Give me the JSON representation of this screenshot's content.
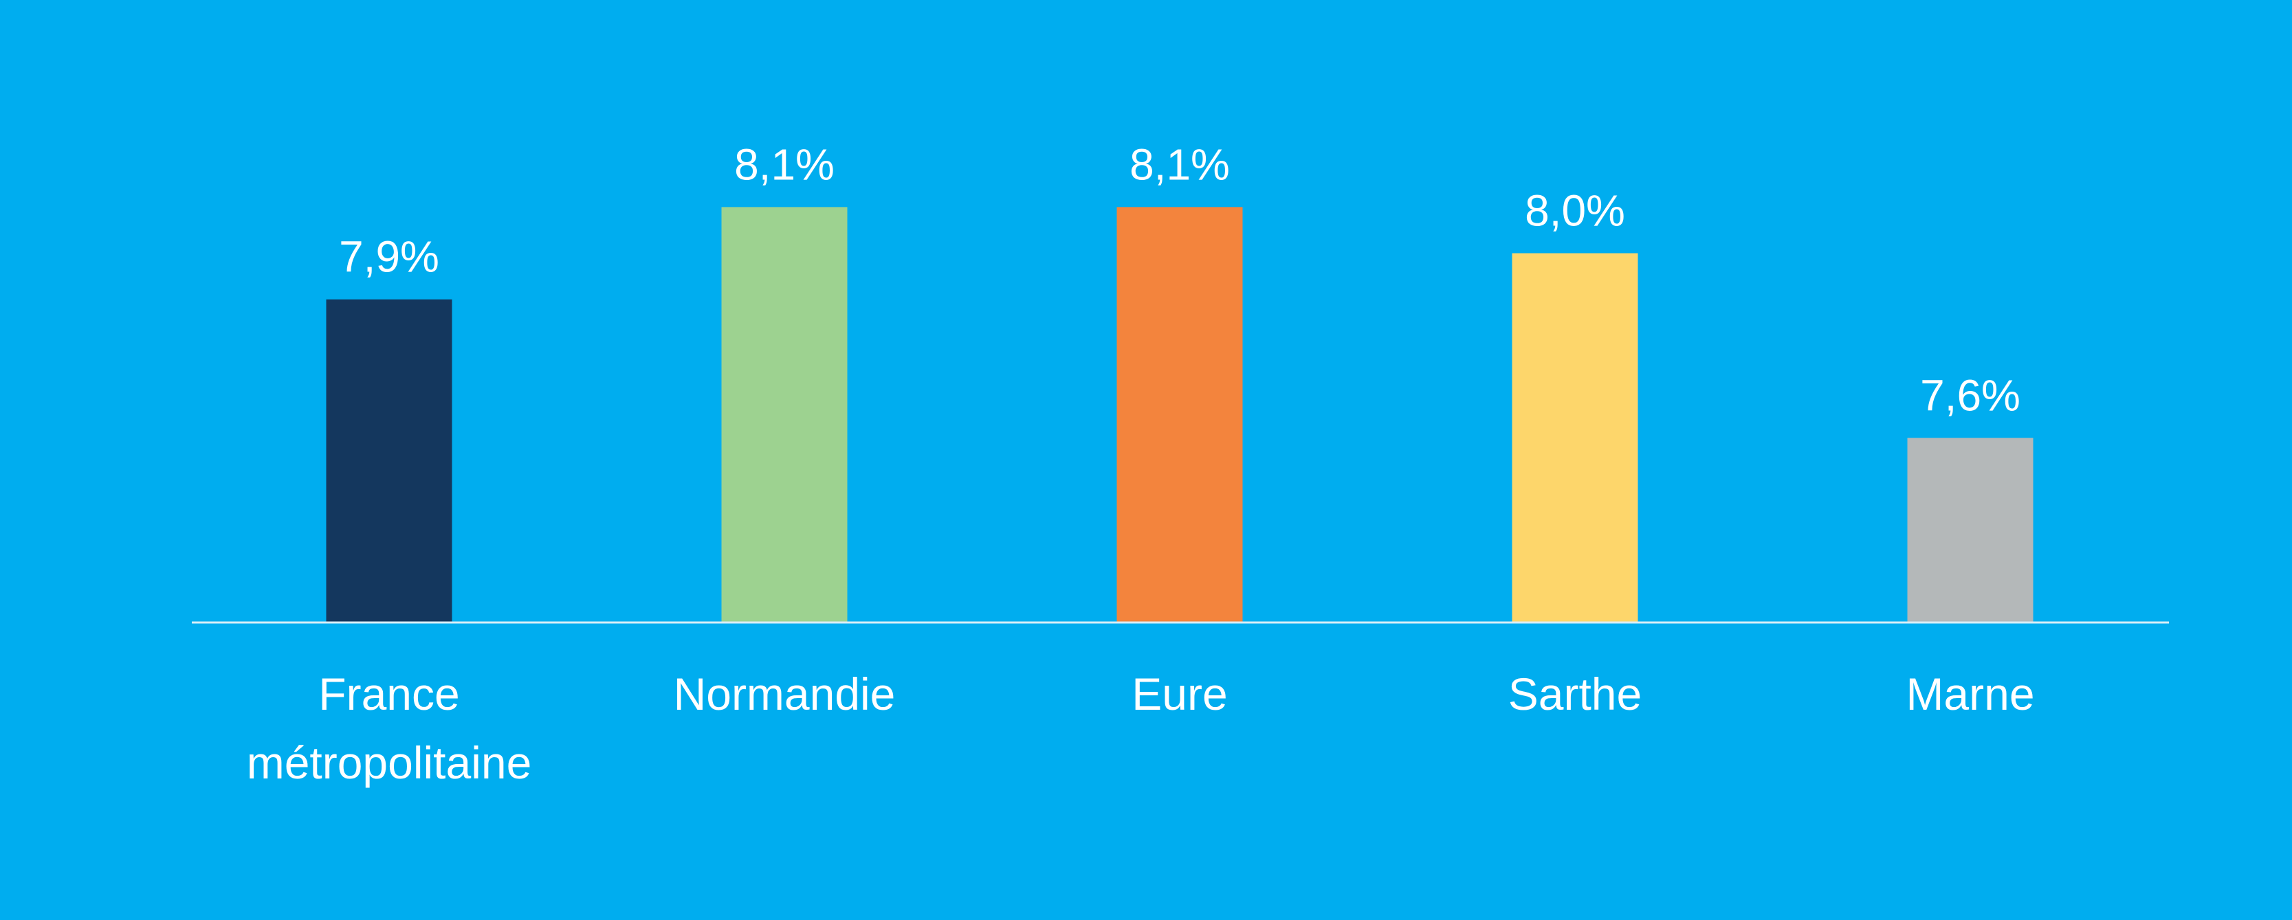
{
  "chart_data": {
    "type": "bar",
    "categories": [
      "France métropolitaine",
      "Normandie",
      "Eure",
      "Sarthe",
      "Marne"
    ],
    "values": [
      7.9,
      8.1,
      8.1,
      8.0,
      7.6
    ],
    "value_labels": [
      "7,9%",
      "8,1%",
      "8,1%",
      "8,0%",
      "7,6%"
    ],
    "colors": [
      "#14375e",
      "#9dd290",
      "#f3843d",
      "#fdd66b",
      "#b4b8b9"
    ],
    "ylim": [
      7.2,
      8.3
    ]
  }
}
